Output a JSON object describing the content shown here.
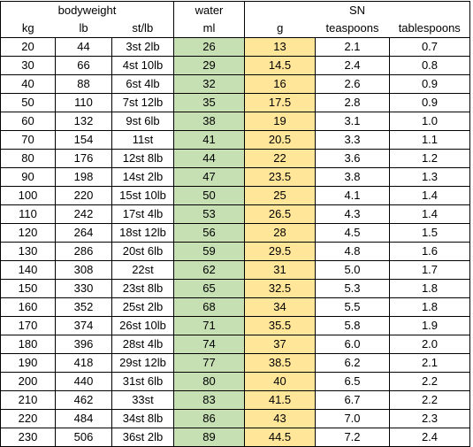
{
  "header": {
    "group_bodyweight": "bodyweight",
    "group_water": "water",
    "group_sn": "SN",
    "col_kg": "kg",
    "col_lb": "lb",
    "col_stlb": "st/lb",
    "col_ml": "ml",
    "col_g": "g",
    "col_teaspoons": "teaspoons",
    "col_tablespoons": "tablespoons"
  },
  "colors": {
    "water_fill": "#c6e0b4",
    "salt_fill": "#ffe699"
  },
  "rows": [
    [
      "20",
      "44",
      "3st 2lb",
      "26",
      "13",
      "2.1",
      "0.7"
    ],
    [
      "30",
      "66",
      "4st 10lb",
      "29",
      "14.5",
      "2.4",
      "0.8"
    ],
    [
      "40",
      "88",
      "6st 4lb",
      "32",
      "16",
      "2.6",
      "0.9"
    ],
    [
      "50",
      "110",
      "7st 12lb",
      "35",
      "17.5",
      "2.8",
      "0.9"
    ],
    [
      "60",
      "132",
      "9st 6lb",
      "38",
      "19",
      "3.1",
      "1.0"
    ],
    [
      "70",
      "154",
      "11st",
      "41",
      "20.5",
      "3.3",
      "1.1"
    ],
    [
      "80",
      "176",
      "12st 8lb",
      "44",
      "22",
      "3.6",
      "1.2"
    ],
    [
      "90",
      "198",
      "14st 2lb",
      "47",
      "23.5",
      "3.8",
      "1.3"
    ],
    [
      "100",
      "220",
      "15st 10lb",
      "50",
      "25",
      "4.1",
      "1.4"
    ],
    [
      "110",
      "242",
      "17st 4lb",
      "53",
      "26.5",
      "4.3",
      "1.4"
    ],
    [
      "120",
      "264",
      "18st 12lb",
      "56",
      "28",
      "4.5",
      "1.5"
    ],
    [
      "130",
      "286",
      "20st 6lb",
      "59",
      "29.5",
      "4.8",
      "1.6"
    ],
    [
      "140",
      "308",
      "22st",
      "62",
      "31",
      "5.0",
      "1.7"
    ],
    [
      "150",
      "330",
      "23st 8lb",
      "65",
      "32.5",
      "5.3",
      "1.8"
    ],
    [
      "160",
      "352",
      "25st 2lb",
      "68",
      "34",
      "5.5",
      "1.8"
    ],
    [
      "170",
      "374",
      "26st 10lb",
      "71",
      "35.5",
      "5.8",
      "1.9"
    ],
    [
      "180",
      "396",
      "28st 4lb",
      "74",
      "37",
      "6.0",
      "2.0"
    ],
    [
      "190",
      "418",
      "29st 12lb",
      "77",
      "38.5",
      "6.2",
      "2.1"
    ],
    [
      "200",
      "440",
      "31st 6lb",
      "80",
      "40",
      "6.5",
      "2.2"
    ],
    [
      "210",
      "462",
      "33st",
      "83",
      "41.5",
      "6.7",
      "2.2"
    ],
    [
      "220",
      "484",
      "34st 8lb",
      "86",
      "43",
      "7.0",
      "2.3"
    ],
    [
      "230",
      "506",
      "36st 2lb",
      "89",
      "44.5",
      "7.2",
      "2.4"
    ]
  ]
}
